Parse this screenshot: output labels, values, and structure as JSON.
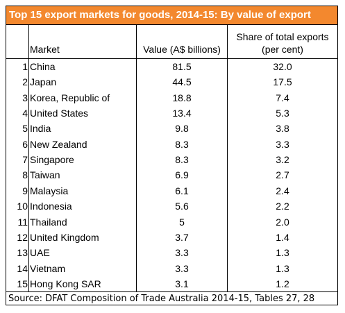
{
  "chart_data": {
    "type": "table",
    "title": "Top 15 export markets for goods, 2014-15: By value of export",
    "columns": [
      "",
      "Market",
      "Value (A$ billions)",
      "Share of total exports (per cent)"
    ],
    "header_share_line1": "Share of total exports",
    "header_share_line2": "(per cent)",
    "rows": [
      {
        "rank": "1",
        "market": "China",
        "value": "81.5",
        "share": "32.0"
      },
      {
        "rank": "2",
        "market": "Japan",
        "value": "44.5",
        "share": "17.5"
      },
      {
        "rank": "3",
        "market": "Korea, Republic of",
        "value": "18.8",
        "share": "7.4"
      },
      {
        "rank": "4",
        "market": "United States",
        "value": "13.4",
        "share": "5.3"
      },
      {
        "rank": "5",
        "market": "India",
        "value": "9.8",
        "share": "3.8"
      },
      {
        "rank": "6",
        "market": "New Zealand",
        "value": "8.3",
        "share": "3.3"
      },
      {
        "rank": "7",
        "market": "Singapore",
        "value": "8.3",
        "share": "3.2"
      },
      {
        "rank": "8",
        "market": "Taiwan",
        "value": "6.9",
        "share": "2.7"
      },
      {
        "rank": "9",
        "market": "Malaysia",
        "value": "6.1",
        "share": "2.4"
      },
      {
        "rank": "10",
        "market": "Indonesia",
        "value": "5.6",
        "share": "2.2"
      },
      {
        "rank": "11",
        "market": "Thailand",
        "value": "5",
        "share": "2.0"
      },
      {
        "rank": "12",
        "market": "United Kingdom",
        "value": "3.7",
        "share": "1.4"
      },
      {
        "rank": "13",
        "market": "UAE",
        "value": "3.3",
        "share": "1.3"
      },
      {
        "rank": "14",
        "market": "Vietnam",
        "value": "3.3",
        "share": "1.3"
      },
      {
        "rank": "15",
        "market": "Hong Kong SAR",
        "value": "3.1",
        "share": "1.2"
      }
    ],
    "source": "Source:  DFAT Composition of Trade Australia 2014-15, Tables 27, 28"
  },
  "colors": {
    "title_background": "#f3882e",
    "title_text": "#ffffff"
  }
}
